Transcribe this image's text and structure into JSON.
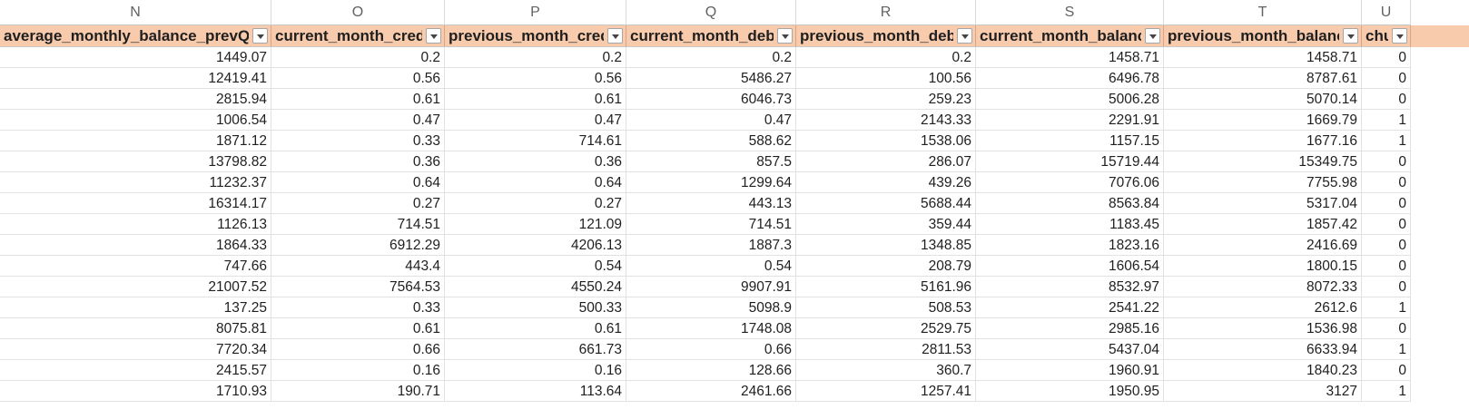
{
  "column_letters": [
    "N",
    "O",
    "P",
    "Q",
    "R",
    "S",
    "T",
    "U"
  ],
  "headers": [
    "average_monthly_balance_prevQ",
    "current_month_credit",
    "previous_month_credit",
    "current_month_debit",
    "previous_month_debit",
    "current_month_balance",
    "previous_month_balance",
    "churn"
  ],
  "rows": [
    [
      "1449.07",
      "0.2",
      "0.2",
      "0.2",
      "0.2",
      "1458.71",
      "1458.71",
      "0"
    ],
    [
      "12419.41",
      "0.56",
      "0.56",
      "5486.27",
      "100.56",
      "6496.78",
      "8787.61",
      "0"
    ],
    [
      "2815.94",
      "0.61",
      "0.61",
      "6046.73",
      "259.23",
      "5006.28",
      "5070.14",
      "0"
    ],
    [
      "1006.54",
      "0.47",
      "0.47",
      "0.47",
      "2143.33",
      "2291.91",
      "1669.79",
      "1"
    ],
    [
      "1871.12",
      "0.33",
      "714.61",
      "588.62",
      "1538.06",
      "1157.15",
      "1677.16",
      "1"
    ],
    [
      "13798.82",
      "0.36",
      "0.36",
      "857.5",
      "286.07",
      "15719.44",
      "15349.75",
      "0"
    ],
    [
      "11232.37",
      "0.64",
      "0.64",
      "1299.64",
      "439.26",
      "7076.06",
      "7755.98",
      "0"
    ],
    [
      "16314.17",
      "0.27",
      "0.27",
      "443.13",
      "5688.44",
      "8563.84",
      "5317.04",
      "0"
    ],
    [
      "1126.13",
      "714.51",
      "121.09",
      "714.51",
      "359.44",
      "1183.45",
      "1857.42",
      "0"
    ],
    [
      "1864.33",
      "6912.29",
      "4206.13",
      "1887.3",
      "1348.85",
      "1823.16",
      "2416.69",
      "0"
    ],
    [
      "747.66",
      "443.4",
      "0.54",
      "0.54",
      "208.79",
      "1606.54",
      "1800.15",
      "0"
    ],
    [
      "21007.52",
      "7564.53",
      "4550.24",
      "9907.91",
      "5161.96",
      "8532.97",
      "8072.33",
      "0"
    ],
    [
      "137.25",
      "0.33",
      "500.33",
      "5098.9",
      "508.53",
      "2541.22",
      "2612.6",
      "1"
    ],
    [
      "8075.81",
      "0.61",
      "0.61",
      "1748.08",
      "2529.75",
      "2985.16",
      "1536.98",
      "0"
    ],
    [
      "7720.34",
      "0.66",
      "661.73",
      "0.66",
      "2811.53",
      "5437.04",
      "6633.94",
      "1"
    ],
    [
      "2415.57",
      "0.16",
      "0.16",
      "128.66",
      "360.7",
      "1960.91",
      "1840.23",
      "0"
    ],
    [
      "1710.93",
      "190.71",
      "113.64",
      "2461.66",
      "1257.41",
      "1950.95",
      "3127",
      "1"
    ]
  ],
  "colors": {
    "header_fill": "#f8cbad",
    "grid_line": "#e2e2e2"
  },
  "icons": {
    "filter": "filter-dropdown-icon"
  }
}
